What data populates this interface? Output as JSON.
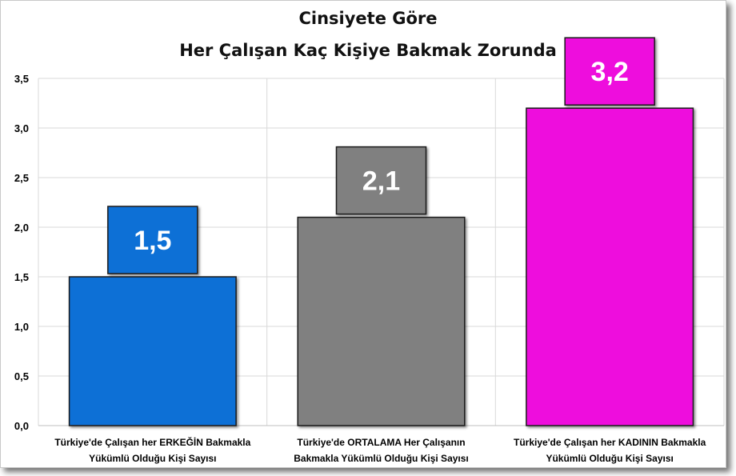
{
  "chart_data": {
    "type": "bar",
    "title": [
      "Cinsiyete Göre",
      "Her Çalışan Kaç Kişiye Bakmak Zorunda"
    ],
    "categories": [
      [
        "Türkiye'de  Çalışan  her ERKEĞİN Bakmakla",
        "Yükümlü Olduğu Kişi Sayısı"
      ],
      [
        "Türkiye'de  ORTALAMA Her Çalışanın",
        "Bakmakla Yükümlü Olduğu Kişi Sayısı"
      ],
      [
        "Türkiye'de Çalışan her KADININ  Bakmakla",
        "Yükümlü Olduğu Kişi Sayısı"
      ]
    ],
    "values": [
      1.5,
      2.1,
      3.2
    ],
    "data_labels": [
      "1,5",
      "2,1",
      "3,2"
    ],
    "colors": [
      "#0b6fd6",
      "#808080",
      "#ee11dd"
    ],
    "ylim": [
      0,
      3.5
    ],
    "yticks": [
      "0,0",
      "0,5",
      "1,0",
      "1,5",
      "2,0",
      "2,5",
      "3,0",
      "3,5"
    ],
    "grid": true,
    "legend": "none"
  }
}
